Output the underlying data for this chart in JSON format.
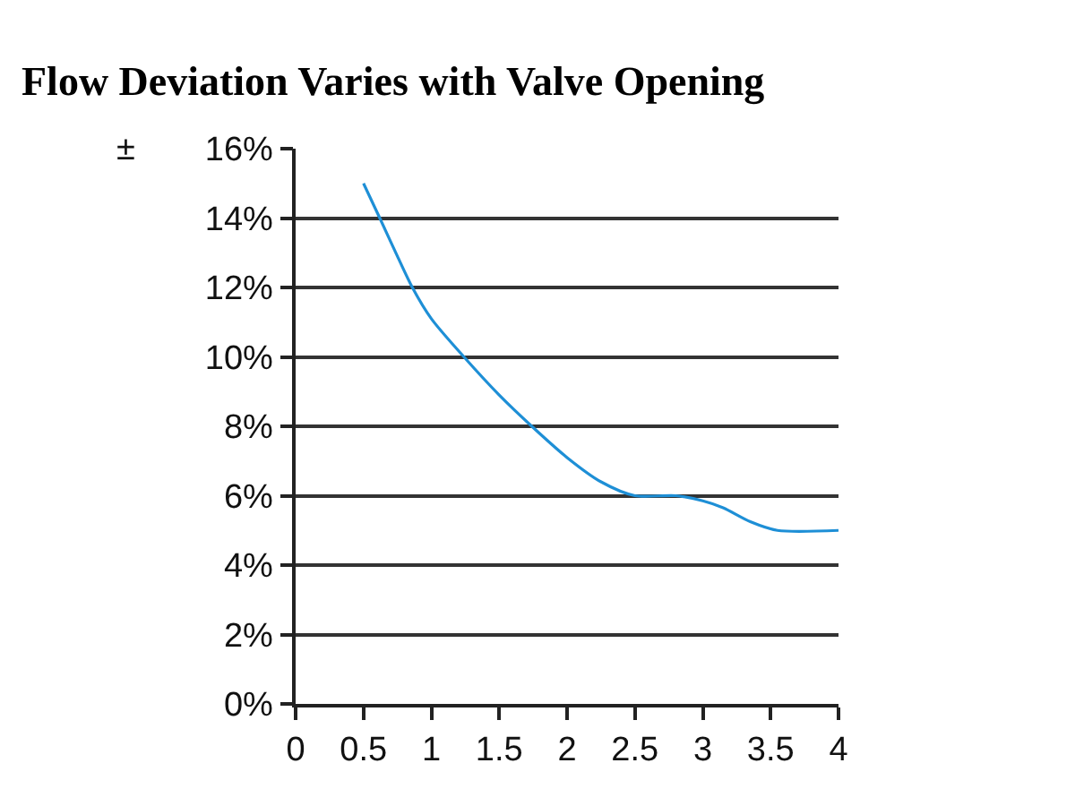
{
  "chart_data": {
    "type": "line",
    "title": "Flow Deviation Varies with Valve Opening",
    "ylabel": "±",
    "x": [
      0.5,
      0.62,
      0.75,
      0.86,
      1.0,
      1.24,
      1.5,
      1.74,
      2.0,
      2.25,
      2.5,
      2.8,
      3.0,
      3.15,
      3.35,
      3.55,
      4.0
    ],
    "values": [
      15.0,
      14.0,
      12.9,
      12.0,
      11.1,
      10.0,
      8.9,
      8.0,
      7.1,
      6.4,
      6.0,
      6.0,
      5.85,
      5.65,
      5.25,
      5.0,
      5.0
    ],
    "color": "#1e8fd6",
    "xlim": [
      0,
      4
    ],
    "ylim": [
      0,
      16
    ],
    "xticks": [
      0,
      0.5,
      1,
      1.5,
      2,
      2.5,
      3,
      3.5,
      4
    ],
    "yticks": [
      {
        "value": 0,
        "label": "0%"
      },
      {
        "value": 2,
        "label": "2%"
      },
      {
        "value": 4,
        "label": "4%"
      },
      {
        "value": 6,
        "label": "6%"
      },
      {
        "value": 8,
        "label": "8%"
      },
      {
        "value": 10,
        "label": "10%"
      },
      {
        "value": 12,
        "label": "12%"
      },
      {
        "value": 14,
        "label": "14%"
      },
      {
        "value": 16,
        "label": "16%"
      }
    ],
    "grid": "y"
  }
}
